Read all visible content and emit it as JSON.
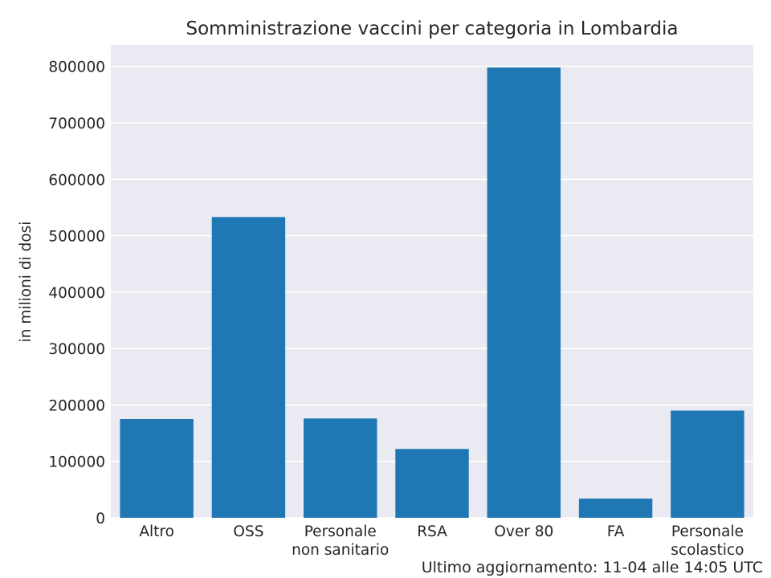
{
  "chart_data": {
    "type": "bar",
    "title": "Somministrazione vaccini per categoria in Lombardia",
    "xlabel": "",
    "ylabel": "in milioni di dosi",
    "categories": [
      [
        "Altro"
      ],
      [
        "OSS"
      ],
      [
        "Personale",
        "non sanitario"
      ],
      [
        "RSA"
      ],
      [
        "Over 80"
      ],
      [
        "FA"
      ],
      [
        "Personale",
        "scolastico"
      ]
    ],
    "values": [
      175000,
      533000,
      176000,
      122000,
      798000,
      34000,
      190000
    ],
    "ylim": [
      0,
      838000
    ],
    "yticks": [
      0,
      100000,
      200000,
      300000,
      400000,
      500000,
      600000,
      700000,
      800000
    ],
    "grid": true,
    "colors": {
      "bar": "#1f77b4",
      "background": "#eaeaf2",
      "grid": "#ffffff",
      "text": "#262626"
    }
  },
  "footer": "Ultimo aggiornamento: 11-04 alle 14:05 UTC"
}
